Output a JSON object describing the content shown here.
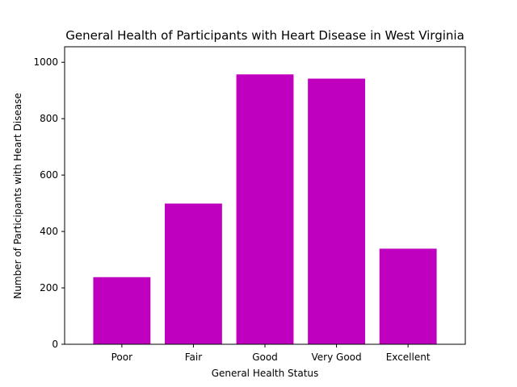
{
  "chart_data": {
    "type": "bar",
    "title": "General Health of Participants with Heart Disease in West Virginia",
    "xlabel": "General Health Status",
    "ylabel": "Number of Participants with Heart Disease",
    "categories": [
      "Poor",
      "Fair",
      "Good",
      "Very Good",
      "Excellent"
    ],
    "values": [
      238,
      499,
      957,
      942,
      339
    ],
    "ylim": [
      0,
      1055
    ],
    "yticks": [
      0,
      200,
      400,
      600,
      800,
      1000
    ],
    "bar_color": "#bf00bf",
    "grid": false,
    "legend": "none"
  }
}
